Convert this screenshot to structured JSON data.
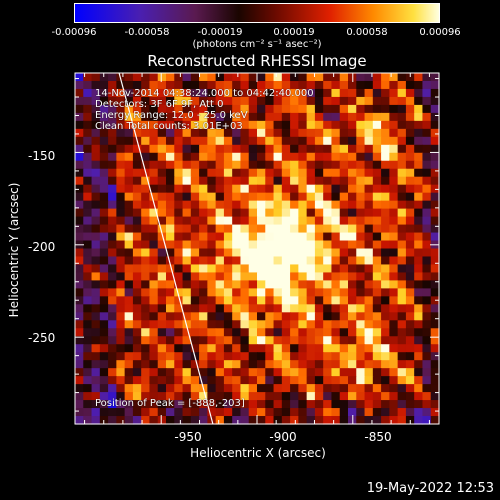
{
  "colorbar": {
    "unit_label": "(photons cm⁻² s⁻¹ asec⁻²)",
    "ticks": [
      "-0.00096",
      "-0.00058",
      "-0.00019",
      "0.00019",
      "0.00058",
      "0.00096"
    ],
    "range": [
      -0.00096,
      0.00096
    ]
  },
  "annotations": {
    "time": "14-Nov-2014 04:38:24.000 to 04:42:40.000",
    "detectors": "Detectors: 3F 6F 9F, Att 0",
    "energy": "Energy Range: 12.0 - 25.0 keV",
    "clean": "Clean    Total counts: 3.01E+03",
    "peak": "Position of Peak = [-888,-203]"
  },
  "footer": {
    "timestamp": "19-May-2022 12:53"
  },
  "chart_data": {
    "type": "heatmap",
    "title": "Reconstructed RHESSI Image",
    "xlabel": "Heliocentric X (arcsec)",
    "ylabel": "Heliocentric Y (arcsec)",
    "xlim": [
      -995,
      -805
    ],
    "ylim": [
      -297,
      -107
    ],
    "x_ticks": [
      "-950",
      "-900",
      "-850"
    ],
    "y_ticks": [
      "-150",
      "-200",
      "-250"
    ],
    "peak": {
      "x": -888,
      "y": -203
    },
    "limb_line": [
      [
        -972,
        -107
      ],
      [
        -923,
        -297
      ]
    ],
    "colormap": "hot"
  }
}
